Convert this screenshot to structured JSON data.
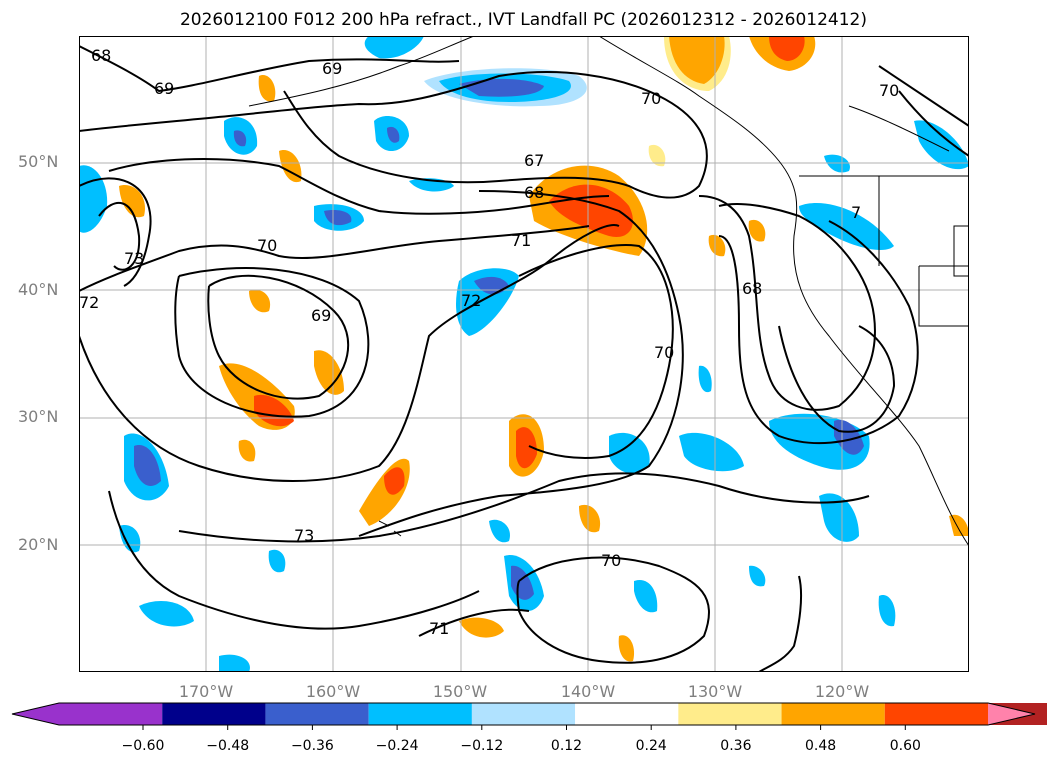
{
  "title": "2026012100 F012 200 hPa refract., IVT Landfall PC (2026012312 - 2026012412)",
  "map": {
    "projection": "PlateCarree",
    "lon_range": [
      180,
      110
    ],
    "lat_range": [
      10,
      60
    ],
    "lat_labels": [
      "50°N",
      "40°N",
      "30°N",
      "20°N"
    ],
    "lat_values": [
      50,
      40,
      30,
      20
    ],
    "lon_labels": [
      "170°W",
      "160°W",
      "150°W",
      "140°W",
      "130°W",
      "120°W"
    ],
    "lon_values": [
      170,
      160,
      150,
      140,
      130,
      120
    ],
    "grid": true,
    "contour_labels": [
      "68",
      "69",
      "69",
      "70",
      "67",
      "68",
      "71",
      "73",
      "72",
      "70",
      "72",
      "69",
      "68",
      "70",
      "73",
      "70",
      "71",
      "70",
      "7"
    ],
    "contour_color": "#000000"
  },
  "colorbar": {
    "ticks": [
      "−0.60",
      "−0.48",
      "−0.36",
      "−0.24",
      "−0.12",
      "0.12",
      "0.24",
      "0.36",
      "0.48",
      "0.60"
    ],
    "colors": [
      "#9932cc",
      "#00008b",
      "#3a5fcd",
      "#00bfff",
      "#b0e2ff",
      "#ffffff",
      "#ffec8b",
      "#ffa500",
      "#ff4500",
      "#b22222",
      "#ff82ab"
    ],
    "extend": "both"
  }
}
